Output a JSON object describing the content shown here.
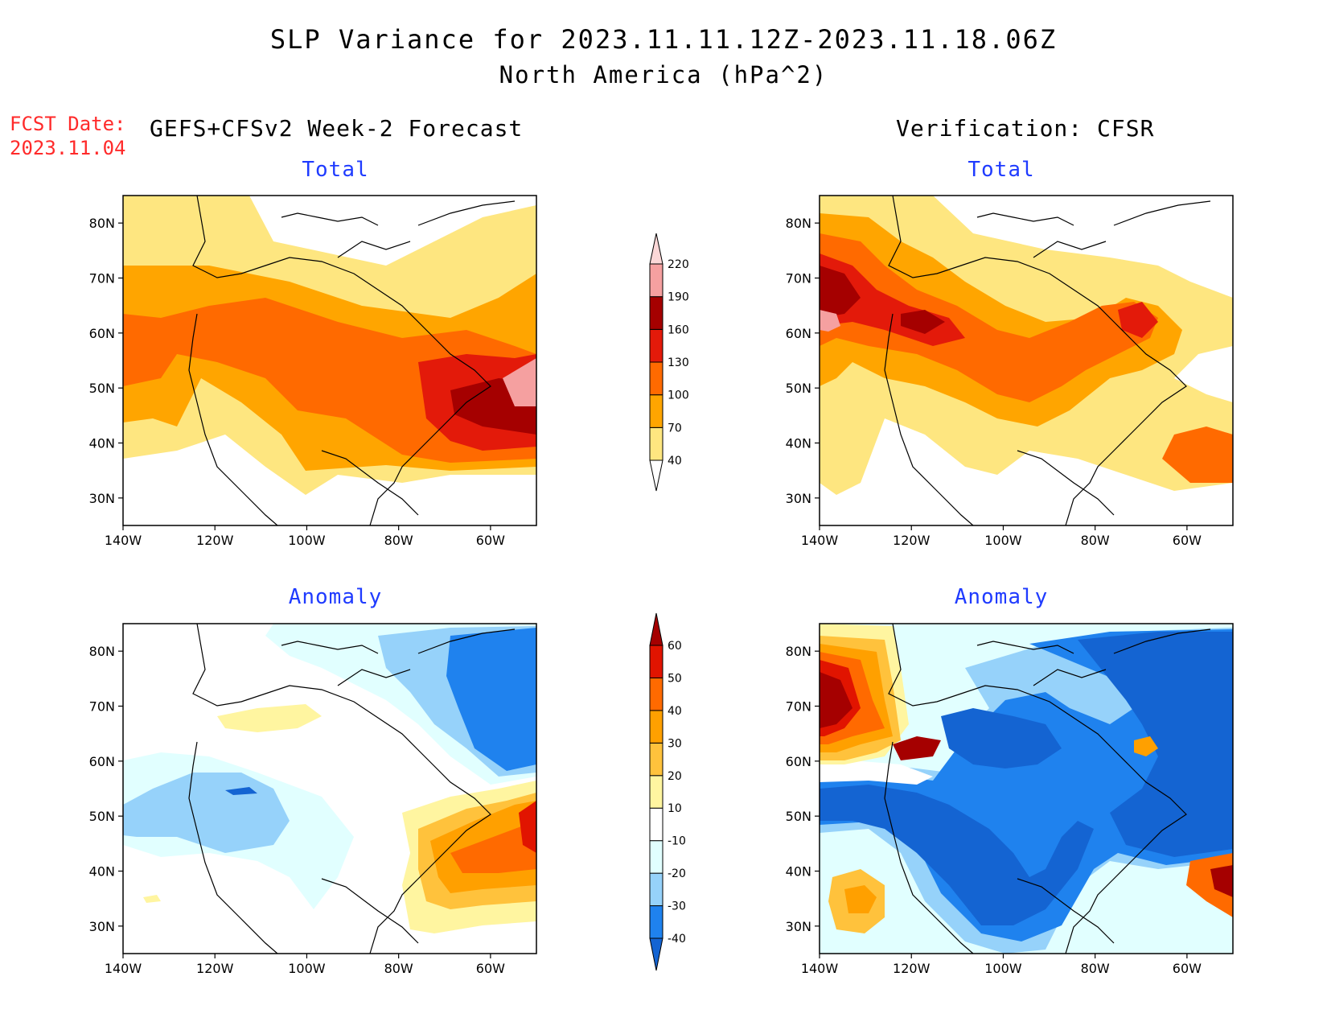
{
  "header": {
    "title": "SLP Variance for 2023.11.11.12Z-2023.11.18.06Z",
    "subtitle": "North America (hPa^2)",
    "fcst_date_label": "FCST Date:",
    "fcst_date_value": "2023.11.04",
    "left_heading": "GEFS+CFSv2 Week-2 Forecast",
    "right_heading": "Verification: CFSR"
  },
  "panels": {
    "top_left_title": "Total",
    "top_right_title": "Total",
    "bottom_left_title": "Anomaly",
    "bottom_right_title": "Anomaly"
  },
  "axes": {
    "lat_labels": [
      "80N",
      "70N",
      "60N",
      "50N",
      "40N",
      "30N"
    ],
    "lon_labels": [
      "140W",
      "120W",
      "100W",
      "80W",
      "60W"
    ]
  },
  "colorbars": {
    "total": {
      "levels": [
        "40",
        "70",
        "100",
        "130",
        "160",
        "190",
        "220"
      ],
      "colors": [
        "#fee680",
        "#ffa500",
        "#ff6a00",
        "#e31a0a",
        "#a50000",
        "#f5a0a0",
        "#fbd7d7"
      ]
    },
    "anomaly": {
      "levels": [
        "-40",
        "-30",
        "-20",
        "-10",
        "10",
        "20",
        "30",
        "40",
        "50",
        "60"
      ],
      "colors": [
        "#1464d2",
        "#1f82ee",
        "#96d2fa",
        "#e1ffff",
        "#ffffff",
        "#fff5a0",
        "#ffc23c",
        "#ffa000",
        "#ff6a00",
        "#e11400",
        "#a50000"
      ]
    }
  },
  "chart_data": [
    {
      "type": "heatmap",
      "title": "Total",
      "panel": "GEFS+CFSv2 Week-2 Forecast",
      "xlabel": "",
      "ylabel": "",
      "x_ticks": [
        "140W",
        "120W",
        "100W",
        "80W",
        "60W"
      ],
      "y_ticks": [
        "80N",
        "70N",
        "60N",
        "50N",
        "40N",
        "30N"
      ],
      "levels": [
        40,
        70,
        100,
        130,
        160,
        190,
        220
      ],
      "max_region": "Gulf of St. Lawrence ~ 160-220"
    },
    {
      "type": "heatmap",
      "title": "Total",
      "panel": "Verification: CFSR",
      "xlabel": "",
      "ylabel": "",
      "x_ticks": [
        "140W",
        "120W",
        "100W",
        "80W",
        "60W"
      ],
      "y_ticks": [
        "80N",
        "70N",
        "60N",
        "50N",
        "40N",
        "30N"
      ],
      "levels": [
        40,
        70,
        100,
        130,
        160,
        190,
        220
      ],
      "max_region": "Gulf of Alaska ~ 190-220"
    },
    {
      "type": "heatmap",
      "title": "Anomaly",
      "panel": "GEFS+CFSv2 Week-2 Forecast",
      "xlabel": "",
      "ylabel": "",
      "x_ticks": [
        "140W",
        "120W",
        "100W",
        "80W",
        "60W"
      ],
      "y_ticks": [
        "80N",
        "70N",
        "60N",
        "50N",
        "40N",
        "30N"
      ],
      "levels": [
        -40,
        -30,
        -20,
        -10,
        10,
        20,
        30,
        40,
        50,
        60
      ]
    },
    {
      "type": "heatmap",
      "title": "Anomaly",
      "panel": "Verification: CFSR",
      "xlabel": "",
      "ylabel": "",
      "x_ticks": [
        "140W",
        "120W",
        "100W",
        "80W",
        "60W"
      ],
      "y_ticks": [
        "80N",
        "70N",
        "60N",
        "50N",
        "40N",
        "30N"
      ],
      "levels": [
        -40,
        -30,
        -20,
        -10,
        10,
        20,
        30,
        40,
        50,
        60
      ]
    }
  ]
}
